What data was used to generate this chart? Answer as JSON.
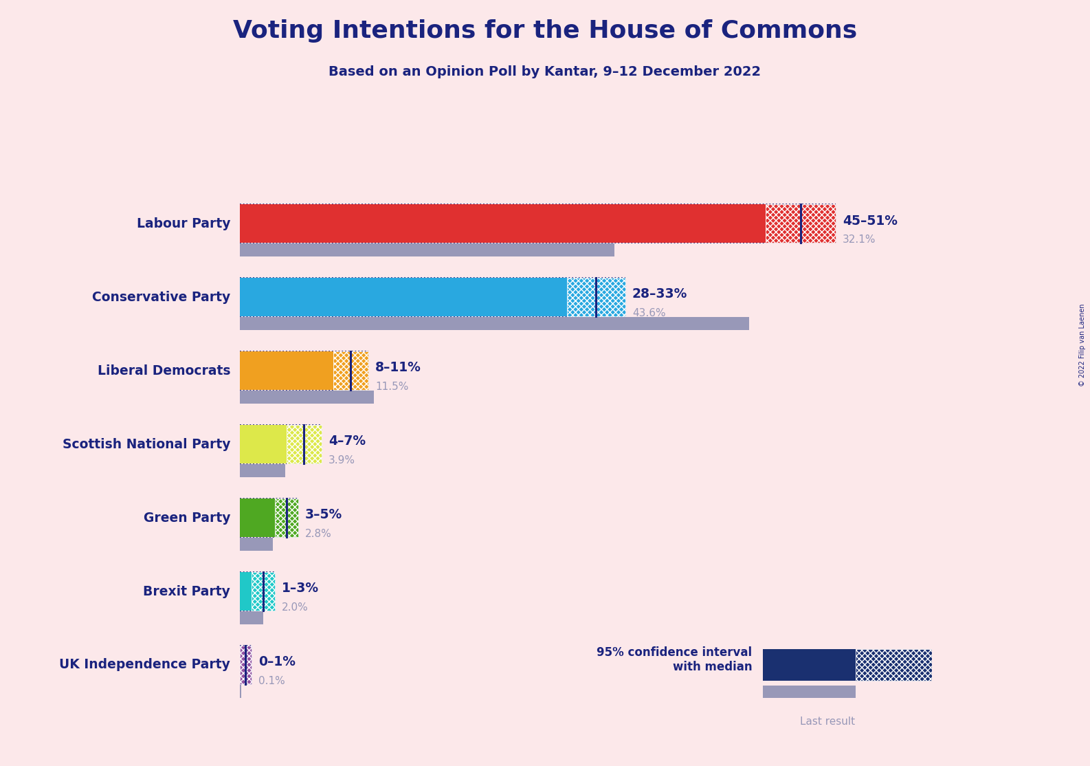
{
  "title": "Voting Intentions for the House of Commons",
  "subtitle": "Based on an Opinion Poll by Kantar, 9–12 December 2022",
  "copyright": "© 2022 Filip van Laenen",
  "background_color": "#fce8ea",
  "title_color": "#1a237e",
  "subtitle_color": "#1a237e",
  "parties": [
    "Labour Party",
    "Conservative Party",
    "Liberal Democrats",
    "Scottish National Party",
    "Green Party",
    "Brexit Party",
    "UK Independence Party"
  ],
  "colors": [
    "#e03030",
    "#29a8e0",
    "#f0a020",
    "#dde84a",
    "#4fa822",
    "#20c8c8",
    "#9050a0"
  ],
  "ci_low": [
    45,
    28,
    8,
    4,
    3,
    1,
    0
  ],
  "ci_high": [
    51,
    33,
    11,
    7,
    5,
    3,
    1
  ],
  "median": [
    48,
    30.5,
    9.5,
    5.5,
    4,
    2,
    0.5
  ],
  "last_result": [
    32.1,
    43.6,
    11.5,
    3.9,
    2.8,
    2.0,
    0.1
  ],
  "range_labels": [
    "45–51%",
    "28–33%",
    "8–11%",
    "4–7%",
    "3–5%",
    "1–3%",
    "0–1%"
  ],
  "party_label_color": "#1a237e",
  "range_label_color": "#1a237e",
  "last_result_color": "#9898b8",
  "legend_text": "95% confidence interval\nwith median",
  "legend_last": "Last result",
  "xlim": [
    0,
    56
  ],
  "bar_height": 0.52,
  "last_bar_height": 0.18,
  "dotted_line_color": "#1a237e",
  "legend_dark_blue": "#1a3070"
}
